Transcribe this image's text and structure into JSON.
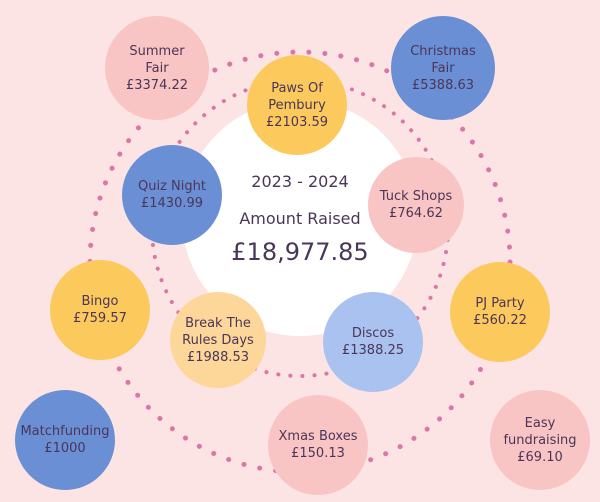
{
  "header": {
    "years": "2023 - 2024",
    "label": "Amount Raised",
    "total": "£18,977.85"
  },
  "items": [
    {
      "label": "Summer Fair",
      "amount": "£3374.22"
    },
    {
      "label": "Christmas Fair",
      "amount": "£5388.63"
    },
    {
      "label": "Paws Of Pembury",
      "amount": "£2103.59"
    },
    {
      "label": "Tuck Shops",
      "amount": "£764.62"
    },
    {
      "label": "Quiz Night",
      "amount": "£1430.99"
    },
    {
      "label": "Bingo",
      "amount": "£759.57"
    },
    {
      "label": "PJ Party",
      "amount": "£560.22"
    },
    {
      "label": "Break The Rules Days",
      "amount": "£1988.53"
    },
    {
      "label": "Discos",
      "amount": "£1388.25"
    },
    {
      "label": "Matchfunding",
      "amount": "£1000"
    },
    {
      "label": "Xmas Boxes",
      "amount": "£150.13"
    },
    {
      "label": "Easy fundraising",
      "amount": "£69.10"
    }
  ]
}
